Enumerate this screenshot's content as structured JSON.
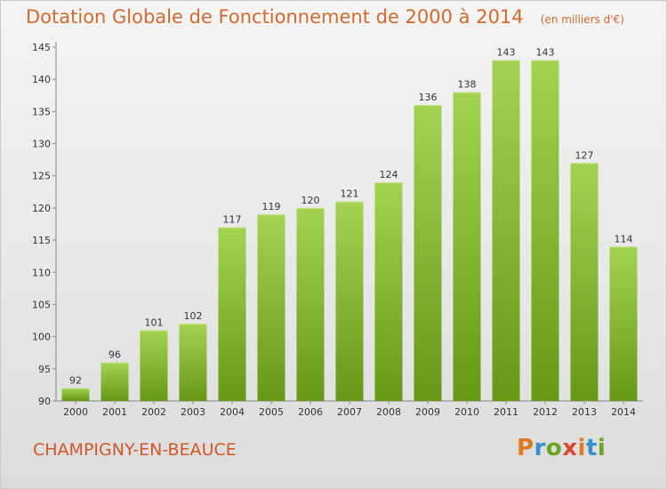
{
  "title": "Dotation Globale de Fonctionnement de 2000 à 2014",
  "unit_note": "(en milliers d'€)",
  "commune": "CHAMPIGNY-EN-BEAUCE",
  "logo": {
    "text": "Proxiti",
    "colors": [
      "#e07a20",
      "#3a8fd0",
      "#6aa624",
      "#d84a2a"
    ]
  },
  "colors": {
    "bar_light": "#9fd14a",
    "bar_dark": "#6a9a18",
    "title": "#d16a2f"
  },
  "chart_data": {
    "type": "bar",
    "categories": [
      "2000",
      "2001",
      "2002",
      "2003",
      "2004",
      "2005",
      "2006",
      "2007",
      "2008",
      "2009",
      "2010",
      "2011",
      "2012",
      "2013",
      "2014"
    ],
    "values": [
      92,
      96,
      101,
      102,
      117,
      119,
      120,
      121,
      124,
      136,
      138,
      143,
      143,
      127,
      114
    ],
    "ylim": [
      90,
      145
    ],
    "yticks": [
      90,
      95,
      100,
      105,
      110,
      115,
      120,
      125,
      130,
      135,
      140,
      145
    ],
    "grid": false,
    "legend": "none"
  }
}
